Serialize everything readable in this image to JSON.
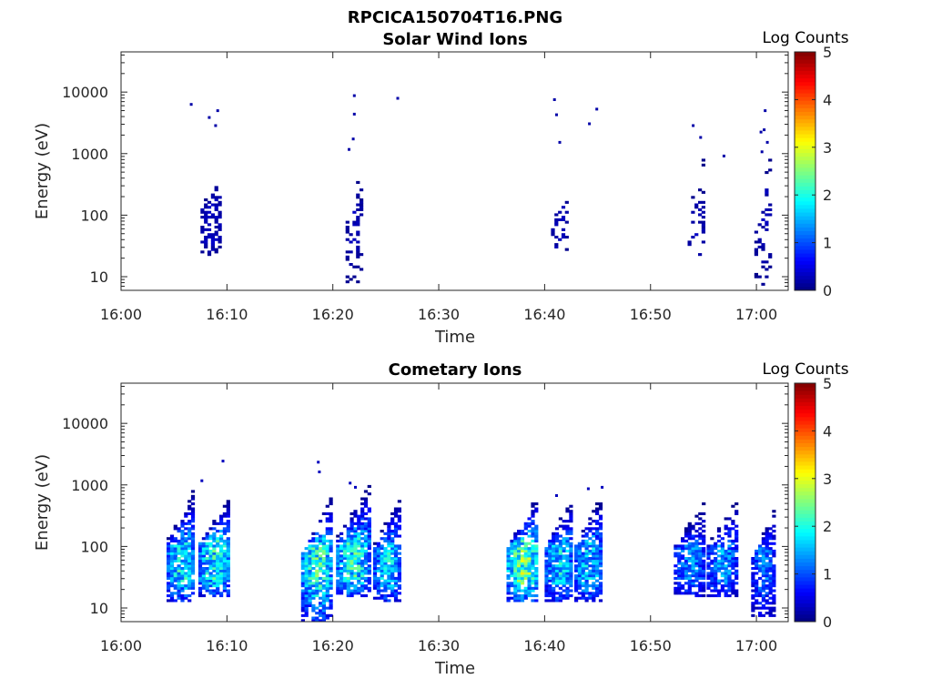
{
  "figure": {
    "title": "RPCICA150704T16.PNG"
  },
  "chart_data": [
    {
      "type": "heatmap",
      "title": "Solar Wind Ions",
      "xlabel": "Time",
      "ylabel": "Energy (eV)",
      "x_ticks": [
        "16:00",
        "16:10",
        "16:20",
        "16:30",
        "16:40",
        "16:50",
        "17:00"
      ],
      "y_ticks": [
        "10",
        "100",
        "1000",
        "10000"
      ],
      "y_scale": "log",
      "xlim": [
        "16:00",
        "17:03"
      ],
      "ylim": [
        6,
        45000
      ],
      "colorbar": {
        "label": "Log Counts",
        "ticks": [
          "0",
          "1",
          "2",
          "3",
          "4",
          "5"
        ],
        "range": [
          0,
          5
        ],
        "colormap": "jet"
      },
      "points": [
        {
          "t": "16:06.5",
          "e": 6200,
          "v": 0.2
        },
        {
          "t": "16:08.2",
          "e": 3800,
          "v": 0.2
        },
        {
          "t": "16:09.0",
          "e": 4900,
          "v": 0.2
        },
        {
          "t": "16:08.8",
          "e": 2800,
          "v": 0.2
        },
        {
          "t": "16:21.9",
          "e": 8600,
          "v": 0.2
        },
        {
          "t": "16:21.9",
          "e": 4300,
          "v": 0.2
        },
        {
          "t": "16:21.8",
          "e": 1700,
          "v": 0.2
        },
        {
          "t": "16:21.4",
          "e": 1150,
          "v": 0.2
        },
        {
          "t": "16:26.0",
          "e": 7800,
          "v": 0.2
        },
        {
          "t": "16:40.8",
          "e": 7400,
          "v": 0.2
        },
        {
          "t": "16:41.0",
          "e": 4200,
          "v": 0.2
        },
        {
          "t": "16:41.3",
          "e": 1500,
          "v": 0.2
        },
        {
          "t": "16:44.8",
          "e": 5200,
          "v": 0.2
        },
        {
          "t": "16:44.1",
          "e": 3000,
          "v": 0.2
        },
        {
          "t": "16:53.9",
          "e": 2800,
          "v": 0.2
        },
        {
          "t": "16:54.6",
          "e": 1800,
          "v": 0.2
        },
        {
          "t": "16:56.8",
          "e": 900,
          "v": 0.2
        },
        {
          "t": "17:00.7",
          "e": 4900,
          "v": 0.2
        },
        {
          "t": "17:00.6",
          "e": 2400,
          "v": 0.2
        },
        {
          "t": "17:00.3",
          "e": 2200,
          "v": 0.2
        },
        {
          "t": "17:00.9",
          "e": 1500,
          "v": 0.2
        },
        {
          "t": "17:00.4",
          "e": 1050,
          "v": 0.2
        }
      ],
      "bursts": [
        {
          "t0": "16:07.5",
          "t1": "16:09.3",
          "emin": 22,
          "emax": 560,
          "core": [
            35,
            150
          ],
          "peak": 0.35,
          "density": 0.55
        },
        {
          "t0": "16:21.2",
          "t1": "16:22.6",
          "emin": 7,
          "emax": 600,
          "core": [
            40,
            130
          ],
          "peak": 0.3,
          "density": 0.35
        },
        {
          "t0": "16:40.6",
          "t1": "16:42.0",
          "emin": 25,
          "emax": 280,
          "core": [
            30,
            120
          ],
          "peak": 0.3,
          "density": 0.3
        },
        {
          "t0": "16:53.5",
          "t1": "16:55.0",
          "emin": 18,
          "emax": 1000,
          "core": [
            40,
            100
          ],
          "peak": 0.3,
          "density": 0.2
        },
        {
          "t0": "16:59.8",
          "t1": "17:01.2",
          "emin": 7,
          "emax": 900,
          "core": [
            40,
            400
          ],
          "peak": 0.3,
          "density": 0.22
        }
      ]
    },
    {
      "type": "heatmap",
      "title": "Cometary Ions",
      "xlabel": "Time",
      "ylabel": "Energy (eV)",
      "x_ticks": [
        "16:00",
        "16:10",
        "16:20",
        "16:30",
        "16:40",
        "16:50",
        "17:00"
      ],
      "y_ticks": [
        "10",
        "100",
        "1000",
        "10000"
      ],
      "y_scale": "log",
      "xlim": [
        "16:00",
        "17:03"
      ],
      "ylim": [
        6,
        45000
      ],
      "colorbar": {
        "label": "Log Counts",
        "ticks": [
          "0",
          "1",
          "2",
          "3",
          "4",
          "5"
        ],
        "range": [
          0,
          5
        ],
        "colormap": "jet"
      },
      "points": [
        {
          "t": "16:09.5",
          "e": 2400,
          "v": 0.3
        },
        {
          "t": "16:07.5",
          "e": 1150,
          "v": 0.3
        },
        {
          "t": "16:18.5",
          "e": 2300,
          "v": 0.3
        },
        {
          "t": "16:18.6",
          "e": 1600,
          "v": 0.3
        },
        {
          "t": "16:21.5",
          "e": 1050,
          "v": 0.3
        },
        {
          "t": "16:22.0",
          "e": 900,
          "v": 0.3
        },
        {
          "t": "16:44.0",
          "e": 850,
          "v": 0.3
        },
        {
          "t": "16:45.3",
          "e": 900,
          "v": 0.3
        },
        {
          "t": "16:41.0",
          "e": 660,
          "v": 0.3
        }
      ],
      "bursts": [
        {
          "t0": "16:04.3",
          "t1": "16:06.8",
          "emin": 12,
          "emax": 900,
          "core": [
            30,
            90
          ],
          "peak": 2.1,
          "density": 0.9
        },
        {
          "t0": "16:07.3",
          "t1": "16:10.2",
          "emin": 14,
          "emax": 650,
          "core": [
            30,
            110
          ],
          "peak": 2.2,
          "density": 0.9
        },
        {
          "t0": "16:17.0",
          "t1": "16:19.8",
          "emin": 6,
          "emax": 700,
          "core": [
            28,
            90
          ],
          "peak": 2.3,
          "density": 0.9
        },
        {
          "t0": "16:20.3",
          "t1": "16:23.3",
          "emin": 14,
          "emax": 950,
          "core": [
            30,
            110
          ],
          "peak": 2.2,
          "density": 0.9
        },
        {
          "t0": "16:23.8",
          "t1": "16:26.2",
          "emin": 12,
          "emax": 650,
          "core": [
            28,
            90
          ],
          "peak": 1.9,
          "density": 0.9
        },
        {
          "t0": "16:36.4",
          "t1": "16:39.3",
          "emin": 12,
          "emax": 700,
          "core": [
            30,
            90
          ],
          "peak": 2.7,
          "density": 0.92
        },
        {
          "t0": "16:40.0",
          "t1": "16:42.5",
          "emin": 12,
          "emax": 650,
          "core": [
            28,
            100
          ],
          "peak": 1.9,
          "density": 0.9
        },
        {
          "t0": "16:42.8",
          "t1": "16:45.3",
          "emin": 12,
          "emax": 700,
          "core": [
            28,
            100
          ],
          "peak": 1.8,
          "density": 0.9
        },
        {
          "t0": "16:52.2",
          "t1": "16:55.0",
          "emin": 14,
          "emax": 550,
          "core": [
            30,
            90
          ],
          "peak": 1.4,
          "density": 0.8
        },
        {
          "t0": "16:55.3",
          "t1": "16:58.0",
          "emin": 14,
          "emax": 550,
          "core": [
            30,
            90
          ],
          "peak": 1.5,
          "density": 0.8
        },
        {
          "t0": "16:59.5",
          "t1": "17:01.5",
          "emin": 7,
          "emax": 400,
          "core": [
            28,
            90
          ],
          "peak": 1.3,
          "density": 0.8
        }
      ]
    }
  ]
}
